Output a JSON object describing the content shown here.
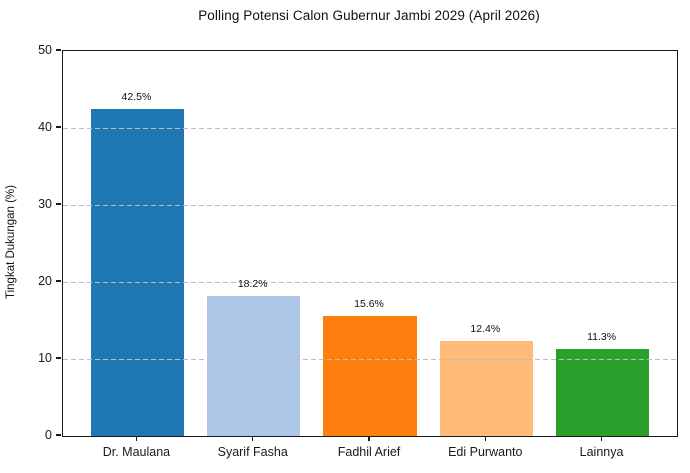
{
  "chart_data": {
    "type": "bar",
    "title": "Polling Potensi Calon Gubernur Jambi 2029 (April 2026)",
    "categories": [
      "Dr. Maulana",
      "Syarif Fasha",
      "Fadhil Arief",
      "Edi Purwanto",
      "Lainnya"
    ],
    "values": [
      42.5,
      18.2,
      15.6,
      12.4,
      11.3
    ],
    "value_labels": [
      "42.5%",
      "18.2%",
      "15.6%",
      "12.4%",
      "11.3%"
    ],
    "bar_colors": [
      "#1f77b4",
      "#aec7e8",
      "#ff7f0e",
      "#ffbb78",
      "#2ca02c"
    ],
    "xlabel": "",
    "ylabel": "Tingkat Dukungan (%)",
    "ylim": [
      0,
      50
    ],
    "yticks": [
      0,
      10,
      20,
      30,
      40,
      50
    ],
    "grid": "horizontal-dashed-above-bars",
    "gridline_color": "#bdbdbd",
    "legend_position": "none",
    "spines": "full-box"
  }
}
